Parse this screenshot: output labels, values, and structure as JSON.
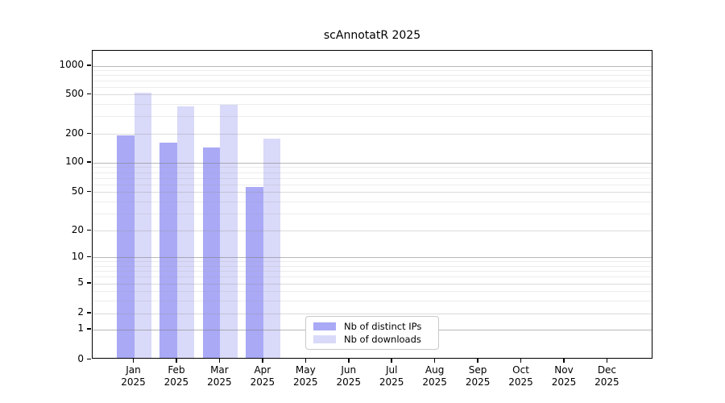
{
  "figure": {
    "background": "#ffffff"
  },
  "chart_data": {
    "type": "bar",
    "title": "scAnnotatR 2025",
    "categories": [
      "Jan",
      "Feb",
      "Mar",
      "Apr",
      "May",
      "Jun",
      "Jul",
      "Aug",
      "Sep",
      "Oct",
      "Nov",
      "Dec"
    ],
    "x_tick_year": "2025",
    "series": [
      {
        "name": "Nb of distinct IPs",
        "color": "#a9a9f6",
        "values": [
          188,
          159,
          141,
          55,
          null,
          null,
          null,
          null,
          null,
          null,
          null,
          null
        ]
      },
      {
        "name": "Nb of downloads",
        "color": "#d9d9f9",
        "values": [
          510,
          370,
          383,
          176,
          null,
          null,
          null,
          null,
          null,
          null,
          null,
          null
        ]
      }
    ],
    "y_ticks": [
      0,
      1,
      2,
      5,
      10,
      20,
      50,
      100,
      200,
      500,
      1000
    ],
    "y_axis_type": "asinh-like (log-spaced decades, linear segment between 0 and 1)",
    "ylim": [
      0,
      1400
    ],
    "grid": "horizontal, major and minor log lines",
    "legend_position": "lower center inside plot",
    "xlabel": "",
    "ylabel": ""
  }
}
